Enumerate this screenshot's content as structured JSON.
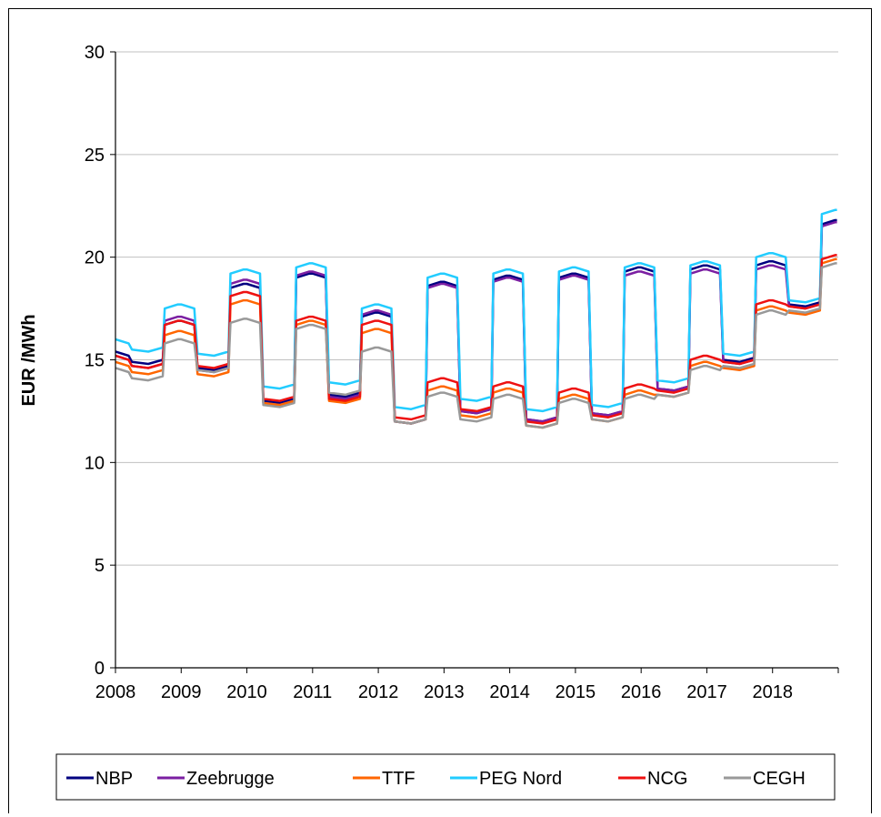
{
  "chart_data": {
    "type": "line",
    "title": "",
    "xlabel": "",
    "ylabel": "EUR /MWh",
    "ylim": [
      0,
      30
    ],
    "yticks": [
      0,
      5,
      10,
      15,
      20,
      25,
      30
    ],
    "xlim": [
      2008,
      2019
    ],
    "xticks": [
      "2008",
      "2009",
      "2010",
      "2011",
      "2012",
      "2013",
      "2014",
      "2015",
      "2016",
      "2017",
      "2018"
    ],
    "grid": "horizontal",
    "legend_position": "bottom",
    "x_format": "monthly, Jan 2008 - Dec 2018",
    "series": [
      {
        "name": "NBP",
        "color": "#000080",
        "summer": [
          14.8,
          14.5,
          12.9,
          13.2,
          11.9,
          12.4,
          12.0,
          12.3,
          13.5,
          14.9,
          17.6
        ],
        "winter": [
          16.9,
          18.7,
          19.2,
          17.3,
          18.8,
          19.1,
          19.2,
          19.5,
          19.6,
          19.8,
          21.8
        ]
      },
      {
        "name": "Zeebrugge",
        "color": "#7B1FA2",
        "summer": [
          14.6,
          14.4,
          12.8,
          13.1,
          11.9,
          12.4,
          12.0,
          12.3,
          13.5,
          14.8,
          17.5
        ],
        "winter": [
          17.1,
          18.9,
          19.3,
          17.4,
          18.7,
          19.0,
          19.1,
          19.3,
          19.4,
          19.6,
          21.7
        ]
      },
      {
        "name": "TTF",
        "color": "#FF6600",
        "summer": [
          14.3,
          14.2,
          12.8,
          12.9,
          11.9,
          12.2,
          11.7,
          12.0,
          13.2,
          14.5,
          17.2
        ],
        "winter": [
          16.4,
          17.9,
          16.9,
          16.5,
          13.7,
          13.6,
          13.3,
          13.5,
          14.9,
          17.6,
          19.9
        ]
      },
      {
        "name": "PEG Nord",
        "color": "#22CCFF",
        "summer": [
          15.4,
          15.2,
          13.6,
          13.8,
          12.6,
          13.0,
          12.5,
          12.7,
          13.9,
          15.2,
          17.8
        ],
        "winter": [
          17.7,
          19.4,
          19.7,
          17.7,
          19.2,
          19.4,
          19.5,
          19.7,
          19.8,
          20.2,
          22.3
        ]
      },
      {
        "name": "NCG",
        "color": "#EE1111",
        "summer": [
          14.6,
          14.6,
          13.0,
          13.0,
          12.1,
          12.5,
          11.9,
          12.2,
          13.4,
          14.8,
          17.5
        ],
        "winter": [
          16.9,
          18.3,
          17.1,
          16.9,
          14.1,
          13.9,
          13.6,
          13.8,
          15.2,
          17.9,
          20.1
        ]
      },
      {
        "name": "CEGH",
        "color": "#999999",
        "summer": [
          14.0,
          14.4,
          12.7,
          13.3,
          11.9,
          12.0,
          11.7,
          12.0,
          13.2,
          14.6,
          17.3
        ],
        "winter": [
          16.0,
          17.0,
          16.7,
          15.6,
          13.4,
          13.3,
          13.1,
          13.3,
          14.7,
          17.4,
          19.7
        ]
      }
    ]
  }
}
